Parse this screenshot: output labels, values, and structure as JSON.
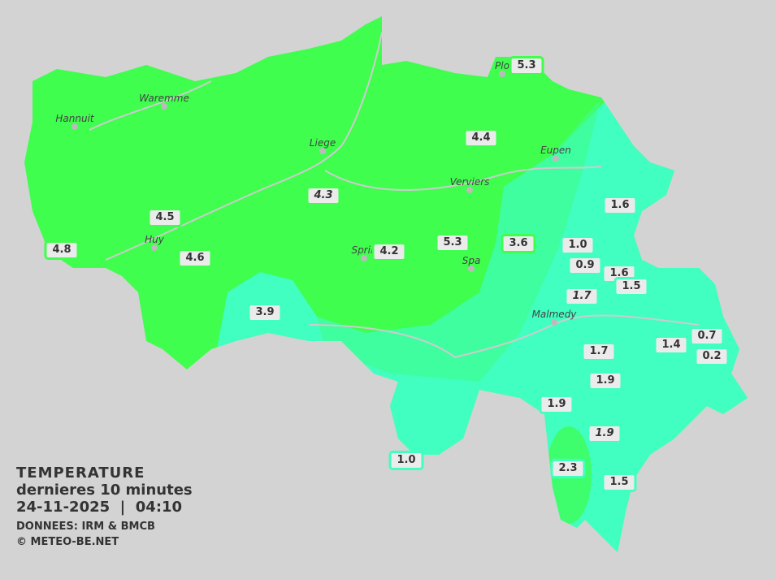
{
  "colors": {
    "background": "#d3d3d3",
    "warm_zone": "#3ffe4e",
    "cool_zone": "#40ffc0",
    "label_bg": "#ebebeb"
  },
  "legend": {
    "title": "TEMPERATURE",
    "subtitle": "dernieres 10 minutes",
    "datetime": "24-11-2025  |  04:10",
    "source": "DONNEES: IRM & BMCB",
    "copyright": "© METEO-BE.NET"
  },
  "cities": [
    {
      "name": "Waremme"
    },
    {
      "name": "Hannuit"
    },
    {
      "name": "Liege"
    },
    {
      "name": "Eupen"
    },
    {
      "name": "Verviers"
    },
    {
      "name": "Huy"
    },
    {
      "name": "Sprin"
    },
    {
      "name": "Spa"
    },
    {
      "name": "Malmedy"
    },
    {
      "name": "Plo"
    }
  ],
  "stations": [
    {
      "value": "5.3",
      "zone": "warm"
    },
    {
      "value": "4.4",
      "zone": "warm"
    },
    {
      "value": "4.3",
      "zone": "warm",
      "italic": true
    },
    {
      "value": "4.5",
      "zone": "warm"
    },
    {
      "value": "4.8",
      "zone": "warm"
    },
    {
      "value": "4.6",
      "zone": "warm"
    },
    {
      "value": "4.2",
      "zone": "warm"
    },
    {
      "value": "5.3",
      "zone": "warm"
    },
    {
      "value": "3.6",
      "zone": "warm"
    },
    {
      "value": "3.9",
      "zone": "cool"
    },
    {
      "value": "1.6",
      "zone": "cool"
    },
    {
      "value": "1.0",
      "zone": "cool"
    },
    {
      "value": "0.9",
      "zone": "cool"
    },
    {
      "value": "1.6",
      "zone": "cool"
    },
    {
      "value": "1.5",
      "zone": "cool"
    },
    {
      "value": "1.7",
      "zone": "cool",
      "italic": true
    },
    {
      "value": "0.7",
      "zone": "cool"
    },
    {
      "value": "1.4",
      "zone": "cool"
    },
    {
      "value": "0.2",
      "zone": "cool"
    },
    {
      "value": "1.7",
      "zone": "cool"
    },
    {
      "value": "1.9",
      "zone": "cool"
    },
    {
      "value": "1.9",
      "zone": "cool"
    },
    {
      "value": "1.9",
      "zone": "cool",
      "italic": true
    },
    {
      "value": "1.0",
      "zone": "cool"
    },
    {
      "value": "2.3",
      "zone": "cool"
    },
    {
      "value": "1.5",
      "zone": "cool"
    }
  ]
}
